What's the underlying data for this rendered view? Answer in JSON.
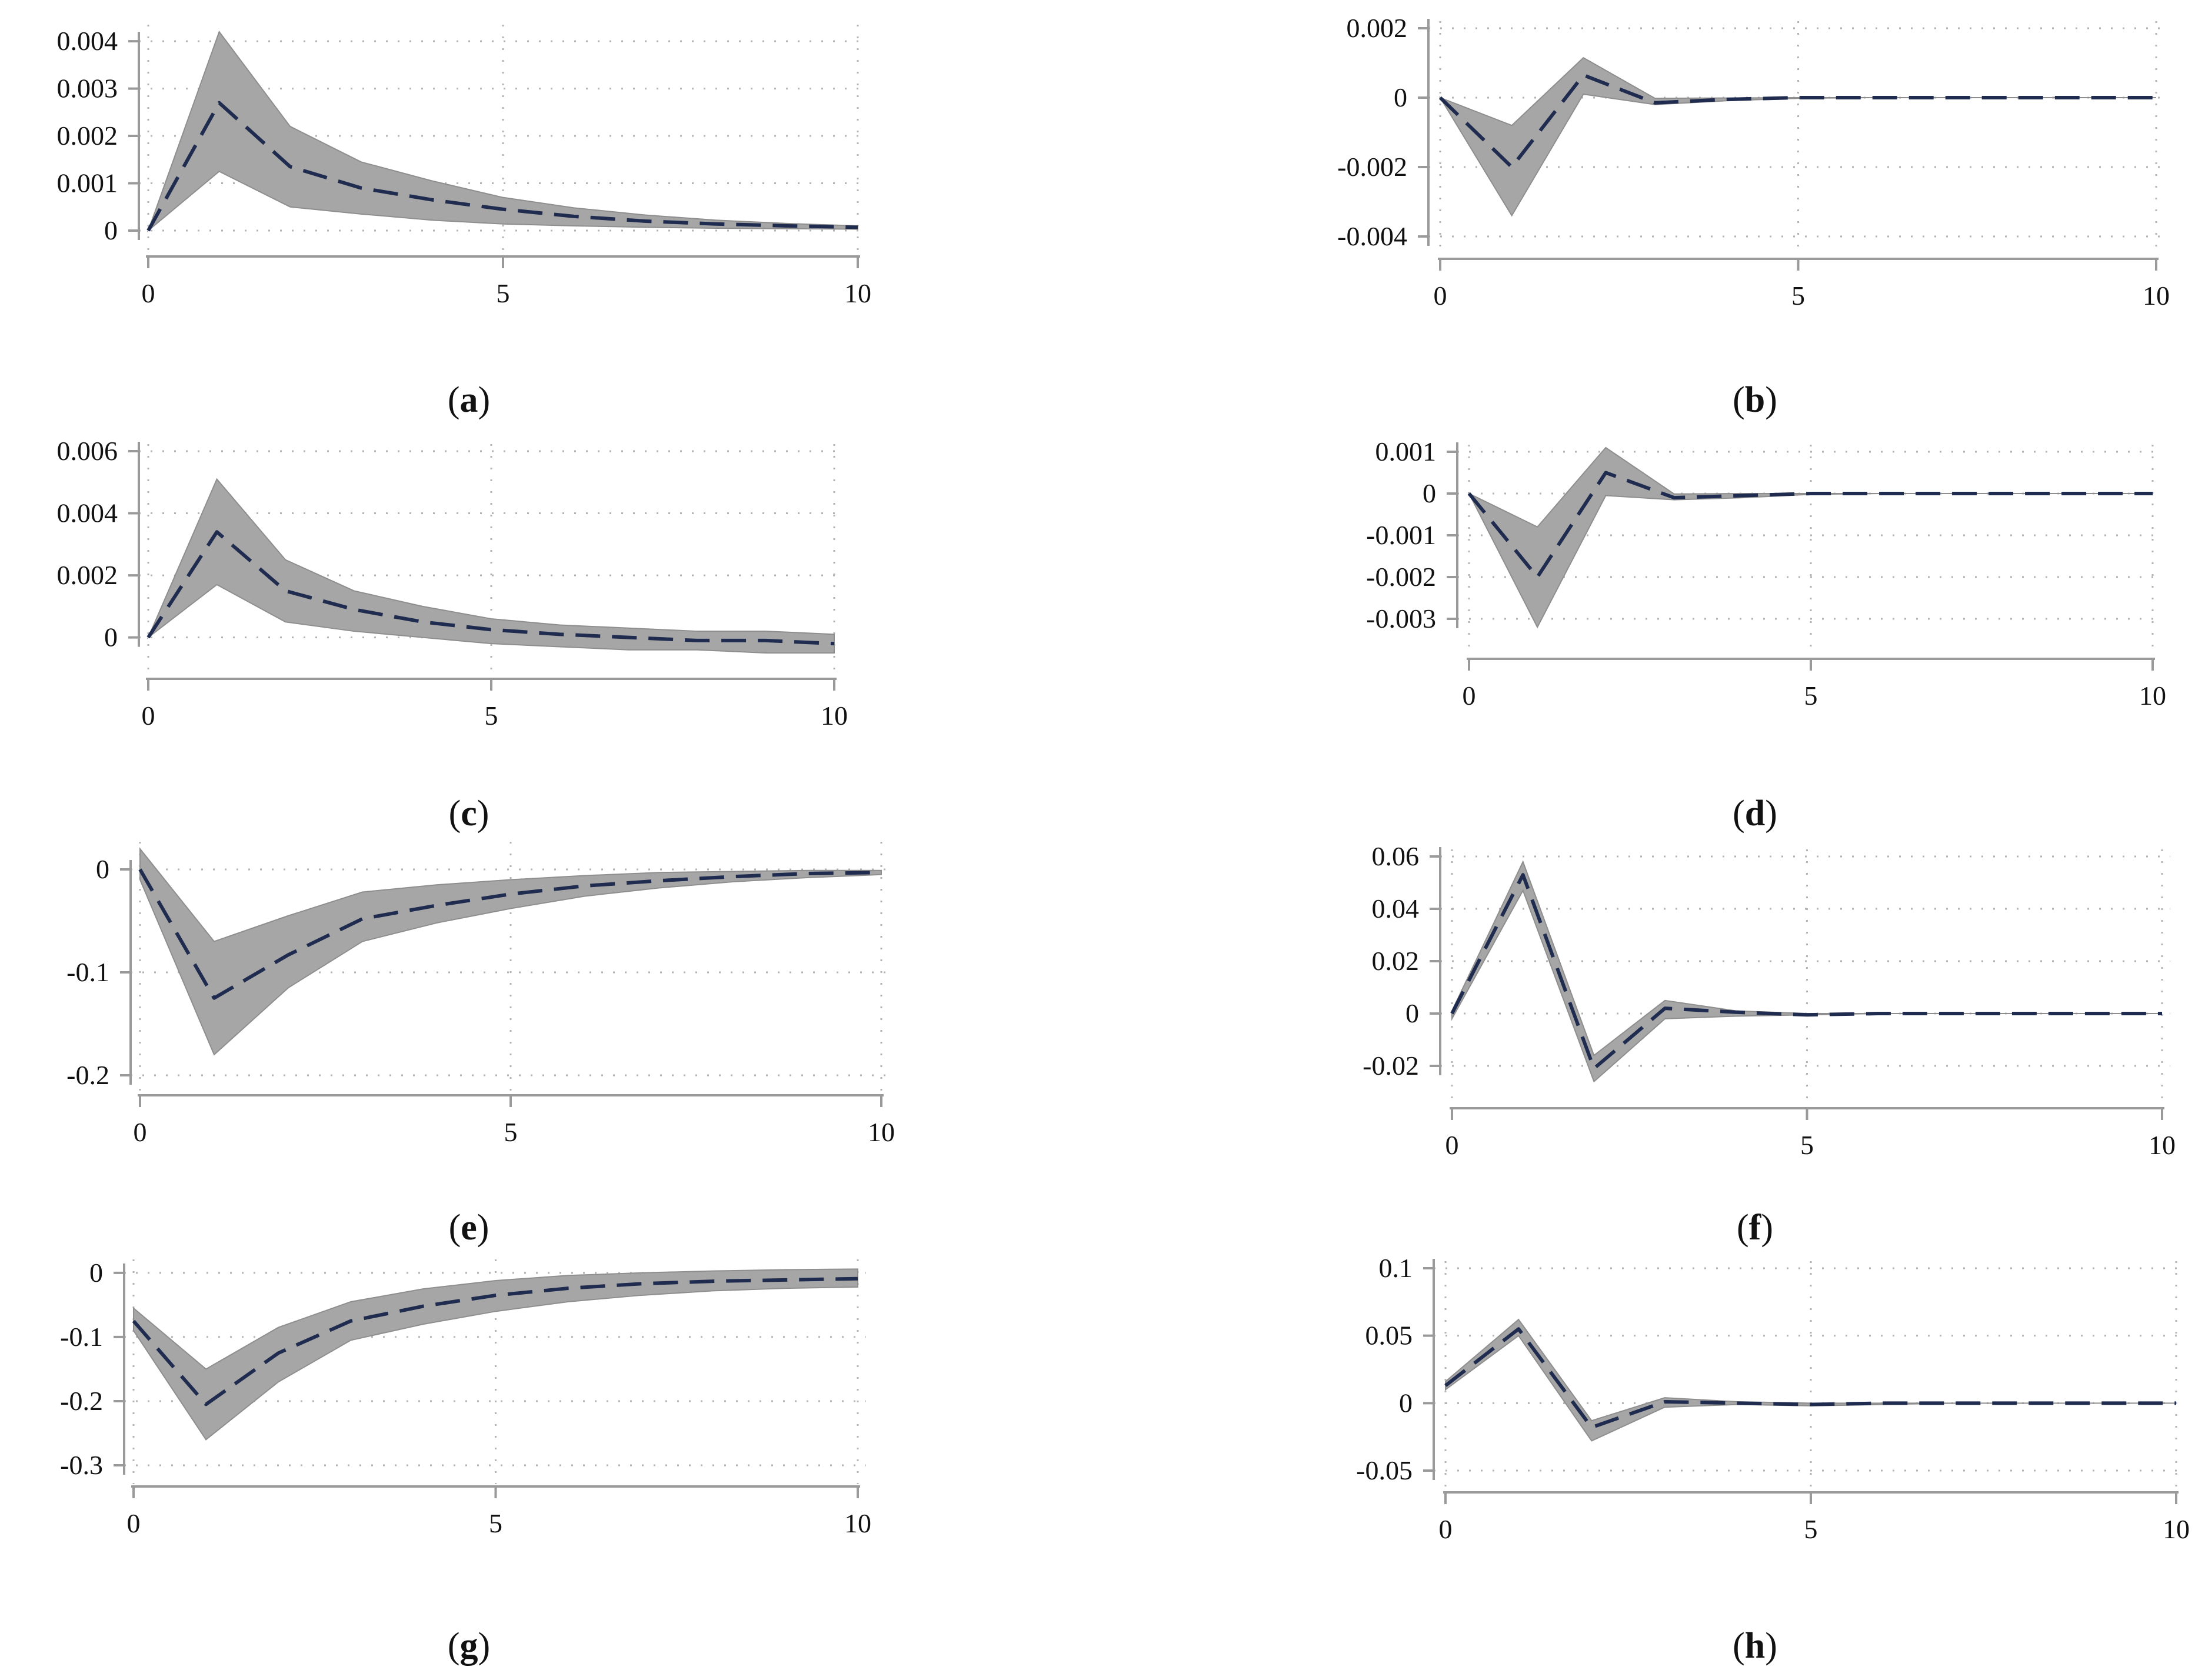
{
  "colors": {
    "band": "#a6a6a6",
    "band_edge": "#8e8e8e",
    "line": "#1f2c4f",
    "axis": "#9a9a9a",
    "grid": "#b3b3b3",
    "text": "#111111"
  },
  "chart_data": [
    {
      "id": "a",
      "type": "area",
      "caption": "a",
      "x": [
        0,
        1,
        2,
        3,
        4,
        5,
        6,
        7,
        8,
        9,
        10
      ],
      "series": [
        {
          "name": "irf",
          "values": [
            0,
            0.0027,
            0.00135,
            0.0009,
            0.00065,
            0.00045,
            0.0003,
            0.0002,
            0.00014,
            0.0001,
            7e-05
          ]
        },
        {
          "name": "upper",
          "values": [
            0,
            0.0042,
            0.0022,
            0.00145,
            0.00105,
            0.0007,
            0.00048,
            0.00033,
            0.00022,
            0.00015,
            0.0001
          ]
        },
        {
          "name": "lower",
          "values": [
            0,
            0.00125,
            0.0005,
            0.00035,
            0.00022,
            0.00014,
            0.0001,
            7e-05,
            5e-05,
            4e-05,
            3e-05
          ]
        }
      ],
      "xticks": [
        0,
        5,
        10
      ],
      "xtick_labels": [
        "0",
        "5",
        "10"
      ],
      "yticks": [
        0,
        0.001,
        0.002,
        0.003,
        0.004
      ],
      "ytick_labels": [
        "0",
        "0.001",
        "0.002",
        "0.003",
        "0.004"
      ],
      "xlim": [
        0,
        10
      ],
      "ylim": [
        0,
        0.0042
      ]
    },
    {
      "id": "b",
      "type": "area",
      "caption": "b",
      "x": [
        0,
        1,
        2,
        3,
        4,
        5,
        6,
        7,
        8,
        9,
        10
      ],
      "series": [
        {
          "name": "irf",
          "values": [
            0,
            -0.002,
            0.00065,
            -0.00015,
            -5e-05,
            0,
            0,
            0,
            0,
            0,
            0
          ]
        },
        {
          "name": "upper",
          "values": [
            0,
            -0.0008,
            0.00115,
            -2e-05,
            -1e-05,
            0,
            0,
            0,
            0,
            0,
            0
          ]
        },
        {
          "name": "lower",
          "values": [
            0,
            -0.0034,
            0.0001,
            -0.0002,
            -9e-05,
            -2e-05,
            0,
            0,
            0,
            0,
            0
          ]
        }
      ],
      "xticks": [
        0,
        5,
        10
      ],
      "xtick_labels": [
        "0",
        "5",
        "10"
      ],
      "yticks": [
        -0.004,
        -0.002,
        0,
        0.002
      ],
      "ytick_labels": [
        "-0.004",
        "-0.002",
        "0",
        "0.002"
      ],
      "xlim": [
        0,
        10
      ],
      "ylim": [
        -0.004,
        0.002
      ]
    },
    {
      "id": "c",
      "type": "area",
      "caption": "c",
      "x": [
        0,
        1,
        2,
        3,
        4,
        5,
        6,
        7,
        8,
        9,
        10
      ],
      "series": [
        {
          "name": "irf",
          "values": [
            0,
            0.0034,
            0.0015,
            0.0009,
            0.0005,
            0.00025,
            0.0001,
            0,
            -0.0001,
            -0.0001,
            -0.0002
          ]
        },
        {
          "name": "upper",
          "values": [
            0,
            0.0051,
            0.0025,
            0.0015,
            0.001,
            0.0006,
            0.0004,
            0.0003,
            0.0002,
            0.0002,
            0.0001
          ]
        },
        {
          "name": "lower",
          "values": [
            0,
            0.0017,
            0.0005,
            0.0002,
            0,
            -0.0002,
            -0.0003,
            -0.0004,
            -0.0004,
            -0.0005,
            -0.0005
          ]
        }
      ],
      "xticks": [
        0,
        5,
        10
      ],
      "xtick_labels": [
        "0",
        "5",
        "10"
      ],
      "yticks": [
        0,
        0.002,
        0.004,
        0.006
      ],
      "ytick_labels": [
        "0",
        "0.002",
        "0.004",
        "0.006"
      ],
      "xlim": [
        0,
        10
      ],
      "ylim": [
        -0.0005,
        0.006
      ]
    },
    {
      "id": "d",
      "type": "area",
      "caption": "d",
      "x": [
        0,
        1,
        2,
        3,
        4,
        5,
        6,
        7,
        8,
        9,
        10
      ],
      "series": [
        {
          "name": "irf",
          "values": [
            0,
            -0.002,
            0.0005,
            -0.0001,
            -5e-05,
            0,
            0,
            0,
            0,
            0,
            0
          ]
        },
        {
          "name": "upper",
          "values": [
            0,
            -0.0008,
            0.0011,
            -1e-05,
            0,
            0,
            0,
            0,
            0,
            0,
            0
          ]
        },
        {
          "name": "lower",
          "values": [
            0,
            -0.0032,
            -5e-05,
            -0.00015,
            -0.0001,
            -2e-05,
            0,
            0,
            0,
            0,
            0
          ]
        }
      ],
      "xticks": [
        0,
        5,
        10
      ],
      "xtick_labels": [
        "0",
        "5",
        "10"
      ],
      "yticks": [
        -0.003,
        -0.002,
        -0.001,
        0,
        0.001
      ],
      "ytick_labels": [
        "-0.003",
        "-0.002",
        "-0.001",
        "0",
        "0.001"
      ],
      "xlim": [
        0,
        10
      ],
      "ylim": [
        -0.003,
        0.001
      ]
    },
    {
      "id": "e",
      "type": "area",
      "caption": "e",
      "x": [
        0,
        1,
        2,
        3,
        4,
        5,
        6,
        7,
        8,
        9,
        10
      ],
      "series": [
        {
          "name": "irf",
          "values": [
            0,
            -0.125,
            -0.083,
            -0.048,
            -0.035,
            -0.024,
            -0.016,
            -0.011,
            -0.007,
            -0.004,
            -0.003
          ]
        },
        {
          "name": "upper",
          "values": [
            0.02,
            -0.07,
            -0.045,
            -0.022,
            -0.015,
            -0.01,
            -0.006,
            -0.003,
            -0.002,
            -0.001,
            -0.001
          ]
        },
        {
          "name": "lower",
          "values": [
            -0.01,
            -0.18,
            -0.115,
            -0.07,
            -0.052,
            -0.038,
            -0.026,
            -0.018,
            -0.012,
            -0.008,
            -0.005
          ]
        }
      ],
      "xticks": [
        0,
        5,
        10
      ],
      "xtick_labels": [
        "0",
        "5",
        "10"
      ],
      "yticks": [
        -0.2,
        -0.1,
        0
      ],
      "ytick_labels": [
        "-0.2",
        "-0.1",
        "0"
      ],
      "xlim": [
        0,
        10
      ],
      "ylim": [
        -0.2,
        0.02
      ]
    },
    {
      "id": "f",
      "type": "area",
      "caption": "f",
      "x": [
        0,
        1,
        2,
        3,
        4,
        5,
        6,
        7,
        8,
        9,
        10
      ],
      "series": [
        {
          "name": "irf",
          "values": [
            0,
            0.053,
            -0.021,
            0.002,
            0.0005,
            -0.0005,
            0,
            0,
            0,
            0,
            0
          ]
        },
        {
          "name": "upper",
          "values": [
            0.001,
            0.058,
            -0.016,
            0.005,
            0.001,
            0,
            0,
            0,
            0,
            0,
            0
          ]
        },
        {
          "name": "lower",
          "values": [
            -0.002,
            0.047,
            -0.026,
            -0.002,
            -0.001,
            -0.0005,
            0,
            0,
            0,
            0,
            0
          ]
        }
      ],
      "xticks": [
        0,
        5,
        10
      ],
      "xtick_labels": [
        "0",
        "5",
        "10"
      ],
      "yticks": [
        -0.02,
        0,
        0.02,
        0.04,
        0.06
      ],
      "ytick_labels": [
        "-0.02",
        "0",
        "0.02",
        "0.04",
        "0.06"
      ],
      "xlim": [
        0,
        10
      ],
      "ylim": [
        -0.02,
        0.06
      ]
    },
    {
      "id": "g",
      "type": "area",
      "caption": "g",
      "x": [
        0,
        1,
        2,
        3,
        4,
        5,
        6,
        7,
        8,
        9,
        10
      ],
      "series": [
        {
          "name": "irf",
          "values": [
            -0.075,
            -0.205,
            -0.125,
            -0.075,
            -0.052,
            -0.035,
            -0.024,
            -0.017,
            -0.013,
            -0.011,
            -0.009
          ]
        },
        {
          "name": "upper",
          "values": [
            -0.055,
            -0.15,
            -0.085,
            -0.045,
            -0.025,
            -0.012,
            -0.004,
            0,
            0.003,
            0.005,
            0.006
          ]
        },
        {
          "name": "lower",
          "values": [
            -0.09,
            -0.26,
            -0.17,
            -0.105,
            -0.08,
            -0.06,
            -0.045,
            -0.035,
            -0.028,
            -0.024,
            -0.022
          ]
        }
      ],
      "xticks": [
        0,
        5,
        10
      ],
      "xtick_labels": [
        "0",
        "5",
        "10"
      ],
      "yticks": [
        -0.3,
        -0.2,
        -0.1,
        0
      ],
      "ytick_labels": [
        "-0.3",
        "-0.2",
        "-0.1",
        "0"
      ],
      "xlim": [
        0,
        10
      ],
      "ylim": [
        -0.3,
        0.01
      ]
    },
    {
      "id": "h",
      "type": "area",
      "caption": "h",
      "x": [
        0,
        1,
        2,
        3,
        4,
        5,
        6,
        7,
        8,
        9,
        10
      ],
      "series": [
        {
          "name": "irf",
          "values": [
            0.013,
            0.055,
            -0.018,
            0.001,
            0,
            -0.001,
            0,
            0,
            0,
            0,
            0
          ]
        },
        {
          "name": "upper",
          "values": [
            0.016,
            0.062,
            -0.013,
            0.004,
            0.001,
            0,
            0,
            0,
            0,
            0,
            0
          ]
        },
        {
          "name": "lower",
          "values": [
            0.01,
            0.05,
            -0.028,
            -0.003,
            -0.001,
            -0.002,
            -0.001,
            0,
            0,
            0,
            0
          ]
        }
      ],
      "xticks": [
        0,
        5,
        10
      ],
      "xtick_labels": [
        "0",
        "5",
        "10"
      ],
      "yticks": [
        -0.05,
        0,
        0.05,
        0.1
      ],
      "ytick_labels": [
        "-0.05",
        "0",
        "0.05",
        "0.1"
      ],
      "xlim": [
        0,
        10
      ],
      "ylim": [
        -0.05,
        0.1
      ]
    }
  ]
}
